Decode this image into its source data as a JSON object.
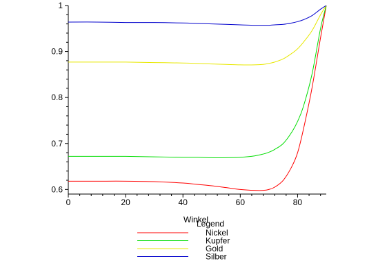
{
  "chart_data": {
    "type": "line",
    "xlabel": "Winkel",
    "ylabel": "",
    "xlim": [
      0,
      90
    ],
    "ylim": [
      0.59,
      1.0
    ],
    "x_ticks": [
      0,
      20,
      40,
      60,
      80
    ],
    "y_ticks": [
      0.6,
      0.7,
      0.8,
      0.9,
      1
    ],
    "grid": false,
    "legend": {
      "title": "Legend",
      "placement": "bottom"
    },
    "x": [
      0,
      10,
      20,
      30,
      40,
      45,
      50,
      55,
      60,
      65,
      68,
      70,
      72,
      75,
      78,
      80,
      82,
      85,
      88,
      90
    ],
    "series": [
      {
        "name": "Nickel",
        "color": "#ff0000",
        "values": [
          0.618,
          0.618,
          0.618,
          0.617,
          0.614,
          0.611,
          0.608,
          0.604,
          0.6,
          0.598,
          0.598,
          0.6,
          0.605,
          0.62,
          0.65,
          0.68,
          0.73,
          0.82,
          0.93,
          1.0
        ]
      },
      {
        "name": "Kupfer",
        "color": "#00dd00",
        "values": [
          0.672,
          0.672,
          0.672,
          0.671,
          0.67,
          0.67,
          0.669,
          0.669,
          0.67,
          0.673,
          0.677,
          0.681,
          0.687,
          0.7,
          0.725,
          0.748,
          0.78,
          0.85,
          0.95,
          1.0
        ]
      },
      {
        "name": "Gold",
        "color": "#e8e800",
        "values": [
          0.877,
          0.877,
          0.877,
          0.876,
          0.875,
          0.874,
          0.873,
          0.872,
          0.871,
          0.871,
          0.872,
          0.874,
          0.877,
          0.884,
          0.896,
          0.906,
          0.92,
          0.945,
          0.98,
          1.0
        ]
      },
      {
        "name": "Silber",
        "color": "#0000cc",
        "values": [
          0.964,
          0.964,
          0.963,
          0.963,
          0.962,
          0.961,
          0.96,
          0.959,
          0.958,
          0.957,
          0.957,
          0.957,
          0.958,
          0.959,
          0.962,
          0.965,
          0.969,
          0.978,
          0.992,
          1.0
        ]
      }
    ]
  }
}
